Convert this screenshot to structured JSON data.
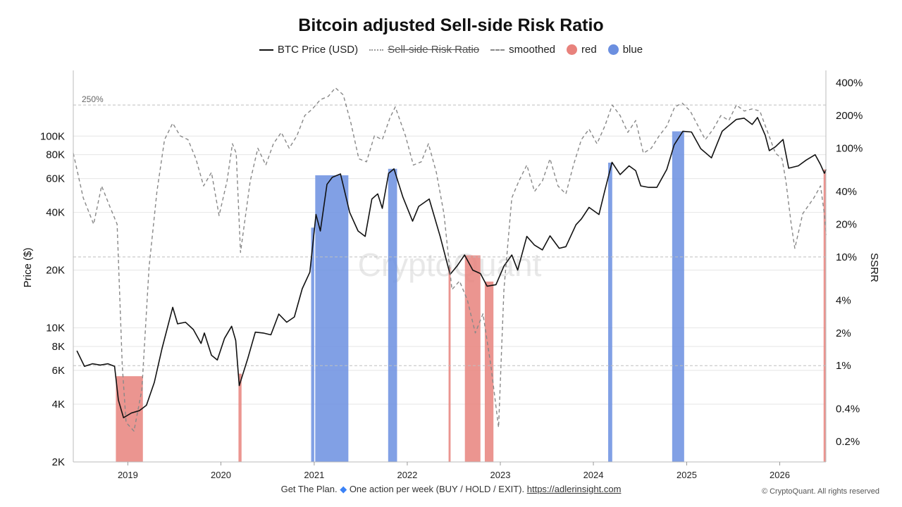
{
  "colors": {
    "price": "#111111",
    "ssrr_smoothed": "#888888",
    "red": "#e8827c",
    "blue": "#6b8fe0",
    "grid": "#e6e6e6",
    "reference": "#bfbfbf"
  },
  "watermark": "CryptoQuant",
  "legend": [
    {
      "label": "BTC Price (USD)",
      "style": "solid",
      "struck": false
    },
    {
      "label": "Sell-side Risk Ratio",
      "style": "dotted",
      "struck": true
    },
    {
      "label": "smoothed",
      "style": "dashed",
      "struck": false
    },
    {
      "label": "red",
      "style": "dot",
      "color_key": "red",
      "struck": false
    },
    {
      "label": "blue",
      "style": "dot",
      "color_key": "blue",
      "struck": false
    }
  ],
  "footer": {
    "text1": "Get The Plan.",
    "icon": "diamond-icon",
    "text2": "One action per week (BUY / HOLD / EXIT).",
    "link": "https://adlerinsight.com",
    "copyright": "© CryptoQuant. All rights reserved"
  },
  "chart_data": {
    "type": "line",
    "title": "Bitcoin adjusted Sell-side Risk Ratio",
    "ylabel": "Price ($)",
    "y2label": "SSRR",
    "y_scale": "log",
    "y2_scale": "log",
    "ylim": [
      2000,
      220000
    ],
    "y2lim": [
      0.0013,
      5.2
    ],
    "xlim": [
      "2018-06",
      "2026-07"
    ],
    "x_ticks": [
      "2019",
      "2020",
      "2021",
      "2022",
      "2023",
      "2024",
      "2025",
      "2026"
    ],
    "y_ticks": [
      {
        "value": 2000,
        "label": "2K"
      },
      {
        "value": 4000,
        "label": "4K"
      },
      {
        "value": 6000,
        "label": "6K"
      },
      {
        "value": 8000,
        "label": "8K"
      },
      {
        "value": 10000,
        "label": "10K"
      },
      {
        "value": 20000,
        "label": "20K"
      },
      {
        "value": 40000,
        "label": "40K"
      },
      {
        "value": 60000,
        "label": "60K"
      },
      {
        "value": 80000,
        "label": "80K"
      },
      {
        "value": 100000,
        "label": "100K"
      }
    ],
    "y2_ticks": [
      {
        "value": 0.002,
        "label": "0.2%"
      },
      {
        "value": 0.004,
        "label": "0.4%"
      },
      {
        "value": 0.01,
        "label": "1%"
      },
      {
        "value": 0.02,
        "label": "2%"
      },
      {
        "value": 0.04,
        "label": "4%"
      },
      {
        "value": 0.1,
        "label": "10%"
      },
      {
        "value": 0.2,
        "label": "20%"
      },
      {
        "value": 0.4,
        "label": "40%"
      },
      {
        "value": 1.0,
        "label": "100%"
      },
      {
        "value": 2.0,
        "label": "200%"
      },
      {
        "value": 4.0,
        "label": "400%"
      }
    ],
    "reference_lines": [
      {
        "value": 2.5,
        "label": "250%"
      },
      {
        "value": 0.1,
        "label": ""
      },
      {
        "value": 0.01,
        "label": ""
      }
    ],
    "series": [
      {
        "name": "BTC Price (USD)",
        "axis": "left",
        "style": "solid",
        "points": [
          [
            "2018-06-15",
            7600
          ],
          [
            "2018-07-15",
            6300
          ],
          [
            "2018-08-15",
            6500
          ],
          [
            "2018-09-15",
            6400
          ],
          [
            "2018-10-15",
            6500
          ],
          [
            "2018-11-10",
            6300
          ],
          [
            "2018-11-25",
            4200
          ],
          [
            "2018-12-15",
            3400
          ],
          [
            "2019-01-15",
            3600
          ],
          [
            "2019-02-15",
            3700
          ],
          [
            "2019-03-15",
            3950
          ],
          [
            "2019-04-15",
            5200
          ],
          [
            "2019-05-15",
            7800
          ],
          [
            "2019-06-26",
            12800
          ],
          [
            "2019-07-15",
            10500
          ],
          [
            "2019-08-15",
            10700
          ],
          [
            "2019-09-15",
            9800
          ],
          [
            "2019-10-15",
            8300
          ],
          [
            "2019-10-28",
            9400
          ],
          [
            "2019-11-25",
            7200
          ],
          [
            "2019-12-18",
            6800
          ],
          [
            "2020-01-15",
            8800
          ],
          [
            "2020-02-12",
            10200
          ],
          [
            "2020-02-28",
            8600
          ],
          [
            "2020-03-13",
            5000
          ],
          [
            "2020-04-15",
            6900
          ],
          [
            "2020-05-15",
            9500
          ],
          [
            "2020-06-15",
            9400
          ],
          [
            "2020-07-15",
            9200
          ],
          [
            "2020-08-15",
            11800
          ],
          [
            "2020-09-15",
            10700
          ],
          [
            "2020-10-15",
            11400
          ],
          [
            "2020-11-15",
            16000
          ],
          [
            "2020-12-15",
            19500
          ],
          [
            "2021-01-08",
            39000
          ],
          [
            "2021-01-25",
            32000
          ],
          [
            "2021-02-20",
            56000
          ],
          [
            "2021-03-13",
            61000
          ],
          [
            "2021-04-14",
            63500
          ],
          [
            "2021-05-20",
            40000
          ],
          [
            "2021-06-22",
            32000
          ],
          [
            "2021-07-20",
            30000
          ],
          [
            "2021-08-15",
            47000
          ],
          [
            "2021-09-07",
            50000
          ],
          [
            "2021-09-25",
            42000
          ],
          [
            "2021-10-20",
            64000
          ],
          [
            "2021-11-10",
            67500
          ],
          [
            "2021-12-15",
            48000
          ],
          [
            "2022-01-22",
            36000
          ],
          [
            "2022-02-15",
            43000
          ],
          [
            "2022-03-28",
            47000
          ],
          [
            "2022-05-10",
            30000
          ],
          [
            "2022-06-18",
            19000
          ],
          [
            "2022-07-15",
            21000
          ],
          [
            "2022-08-14",
            24000
          ],
          [
            "2022-09-15",
            20000
          ],
          [
            "2022-10-15",
            19200
          ],
          [
            "2022-11-10",
            16500
          ],
          [
            "2022-12-15",
            16800
          ],
          [
            "2023-01-15",
            21000
          ],
          [
            "2023-02-15",
            24000
          ],
          [
            "2023-03-10",
            20000
          ],
          [
            "2023-04-15",
            30000
          ],
          [
            "2023-05-15",
            27000
          ],
          [
            "2023-06-15",
            25500
          ],
          [
            "2023-07-15",
            30200
          ],
          [
            "2023-08-20",
            26000
          ],
          [
            "2023-09-15",
            26500
          ],
          [
            "2023-10-25",
            34500
          ],
          [
            "2023-11-15",
            37000
          ],
          [
            "2023-12-15",
            42500
          ],
          [
            "2024-01-23",
            39000
          ],
          [
            "2024-02-15",
            52000
          ],
          [
            "2024-03-14",
            73000
          ],
          [
            "2024-04-15",
            63000
          ],
          [
            "2024-05-20",
            70000
          ],
          [
            "2024-06-15",
            66000
          ],
          [
            "2024-07-05",
            55000
          ],
          [
            "2024-08-05",
            54000
          ],
          [
            "2024-09-06",
            54000
          ],
          [
            "2024-10-15",
            67000
          ],
          [
            "2024-11-13",
            90000
          ],
          [
            "2024-12-17",
            106000
          ],
          [
            "2025-01-20",
            105000
          ],
          [
            "2025-02-25",
            86000
          ],
          [
            "2025-04-08",
            77000
          ],
          [
            "2025-05-20",
            106000
          ],
          [
            "2025-07-14",
            122000
          ],
          [
            "2025-08-14",
            124000
          ],
          [
            "2025-09-15",
            115000
          ],
          [
            "2025-10-06",
            125000
          ],
          [
            "2025-11-05",
            101000
          ],
          [
            "2025-11-21",
            84000
          ],
          [
            "2025-12-15",
            88000
          ],
          [
            "2026-01-14",
            96000
          ],
          [
            "2026-02-05",
            68000
          ],
          [
            "2026-03-15",
            70000
          ],
          [
            "2026-04-15",
            75000
          ],
          [
            "2026-05-20",
            80000
          ],
          [
            "2026-06-10",
            71000
          ],
          [
            "2026-06-25",
            64000
          ],
          [
            "2026-07-02",
            67000
          ]
        ]
      },
      {
        "name": "smoothed",
        "axis": "right",
        "style": "dashed",
        "points": [
          [
            "2018-06-01",
            0.9
          ],
          [
            "2018-07-10",
            0.35
          ],
          [
            "2018-08-20",
            0.2
          ],
          [
            "2018-09-20",
            0.45
          ],
          [
            "2018-10-20",
            0.3
          ],
          [
            "2018-11-20",
            0.2
          ],
          [
            "2018-12-10",
            0.01
          ],
          [
            "2018-12-25",
            0.003
          ],
          [
            "2019-01-25",
            0.0025
          ],
          [
            "2019-02-25",
            0.006
          ],
          [
            "2019-03-25",
            0.08
          ],
          [
            "2019-04-25",
            0.4
          ],
          [
            "2019-05-25",
            1.2
          ],
          [
            "2019-06-26",
            1.7
          ],
          [
            "2019-07-25",
            1.3
          ],
          [
            "2019-08-25",
            1.2
          ],
          [
            "2019-09-25",
            0.8
          ],
          [
            "2019-10-25",
            0.45
          ],
          [
            "2019-11-25",
            0.6
          ],
          [
            "2019-12-25",
            0.24
          ],
          [
            "2020-01-25",
            0.5
          ],
          [
            "2020-02-15",
            1.1
          ],
          [
            "2020-03-01",
            0.9
          ],
          [
            "2020-03-18",
            0.11
          ],
          [
            "2020-04-25",
            0.5
          ],
          [
            "2020-05-25",
            1.0
          ],
          [
            "2020-06-25",
            0.7
          ],
          [
            "2020-07-25",
            1.1
          ],
          [
            "2020-08-25",
            1.4
          ],
          [
            "2020-09-25",
            1.0
          ],
          [
            "2020-10-25",
            1.3
          ],
          [
            "2020-11-25",
            2.0
          ],
          [
            "2020-12-25",
            2.3
          ],
          [
            "2021-01-25",
            2.8
          ],
          [
            "2021-02-25",
            3.0
          ],
          [
            "2021-03-25",
            3.6
          ],
          [
            "2021-04-25",
            3.1
          ],
          [
            "2021-05-25",
            1.7
          ],
          [
            "2021-06-25",
            0.8
          ],
          [
            "2021-07-25",
            0.75
          ],
          [
            "2021-08-25",
            1.3
          ],
          [
            "2021-09-25",
            1.2
          ],
          [
            "2021-10-25",
            1.9
          ],
          [
            "2021-11-15",
            2.4
          ],
          [
            "2021-12-25",
            1.3
          ],
          [
            "2022-01-25",
            0.7
          ],
          [
            "2022-02-25",
            0.75
          ],
          [
            "2022-03-25",
            1.1
          ],
          [
            "2022-04-25",
            0.6
          ],
          [
            "2022-05-25",
            0.25
          ],
          [
            "2022-06-25",
            0.05
          ],
          [
            "2022-07-25",
            0.06
          ],
          [
            "2022-08-25",
            0.04
          ],
          [
            "2022-09-25",
            0.02
          ],
          [
            "2022-10-25",
            0.03
          ],
          [
            "2022-11-25",
            0.01
          ],
          [
            "2022-12-25",
            0.0027
          ],
          [
            "2023-01-15",
            0.05
          ],
          [
            "2023-02-15",
            0.35
          ],
          [
            "2023-03-15",
            0.5
          ],
          [
            "2023-04-15",
            0.7
          ],
          [
            "2023-05-15",
            0.4
          ],
          [
            "2023-06-15",
            0.5
          ],
          [
            "2023-07-15",
            0.8
          ],
          [
            "2023-08-15",
            0.45
          ],
          [
            "2023-09-15",
            0.38
          ],
          [
            "2023-10-15",
            0.7
          ],
          [
            "2023-11-15",
            1.2
          ],
          [
            "2023-12-15",
            1.5
          ],
          [
            "2024-01-15",
            1.1
          ],
          [
            "2024-02-15",
            1.6
          ],
          [
            "2024-03-15",
            2.5
          ],
          [
            "2024-04-15",
            2.0
          ],
          [
            "2024-05-15",
            1.4
          ],
          [
            "2024-06-15",
            1.8
          ],
          [
            "2024-07-15",
            0.9
          ],
          [
            "2024-08-15",
            1.0
          ],
          [
            "2024-09-15",
            1.3
          ],
          [
            "2024-10-15",
            1.6
          ],
          [
            "2024-11-15",
            2.4
          ],
          [
            "2024-12-15",
            2.6
          ],
          [
            "2025-01-15",
            2.2
          ],
          [
            "2025-02-15",
            1.6
          ],
          [
            "2025-03-15",
            1.2
          ],
          [
            "2025-04-15",
            1.5
          ],
          [
            "2025-05-15",
            2.0
          ],
          [
            "2025-06-15",
            1.8
          ],
          [
            "2025-07-15",
            2.5
          ],
          [
            "2025-08-15",
            2.2
          ],
          [
            "2025-09-15",
            2.3
          ],
          [
            "2025-10-15",
            2.2
          ],
          [
            "2025-11-15",
            1.4
          ],
          [
            "2025-12-15",
            0.9
          ],
          [
            "2026-01-10",
            0.8
          ],
          [
            "2026-01-25",
            0.5
          ],
          [
            "2026-02-15",
            0.2
          ],
          [
            "2026-03-01",
            0.12
          ],
          [
            "2026-04-01",
            0.25
          ],
          [
            "2026-05-15",
            0.35
          ],
          [
            "2026-06-10",
            0.45
          ],
          [
            "2026-06-25",
            0.25
          ],
          [
            "2026-07-02",
            0.16
          ]
        ]
      }
    ],
    "bands": [
      {
        "color": "red",
        "start": "2018-11-15",
        "end": "2019-03-01"
      },
      {
        "color": "red",
        "start": "2020-03-10",
        "end": "2020-03-22"
      },
      {
        "color": "blue",
        "start": "2020-12-20",
        "end": "2021-01-01"
      },
      {
        "color": "blue",
        "start": "2021-01-05",
        "end": "2021-05-15"
      },
      {
        "color": "blue",
        "start": "2021-10-18",
        "end": "2021-11-22"
      },
      {
        "color": "red",
        "start": "2022-06-12",
        "end": "2022-06-20"
      },
      {
        "color": "red",
        "start": "2022-08-15",
        "end": "2022-10-15"
      },
      {
        "color": "red",
        "start": "2022-11-01",
        "end": "2022-12-05"
      },
      {
        "color": "blue",
        "start": "2024-02-28",
        "end": "2024-03-15"
      },
      {
        "color": "blue",
        "start": "2024-11-05",
        "end": "2024-12-22"
      },
      {
        "color": "red",
        "start": "2026-06-22",
        "end": "2026-07-02"
      }
    ]
  }
}
